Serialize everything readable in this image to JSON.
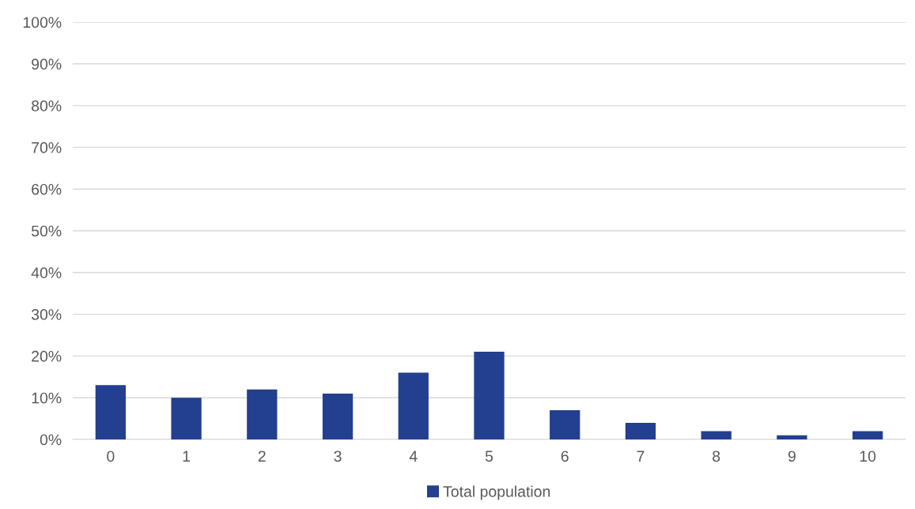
{
  "chart_data": {
    "type": "bar",
    "categories": [
      "0",
      "1",
      "2",
      "3",
      "4",
      "5",
      "6",
      "7",
      "8",
      "9",
      "10"
    ],
    "series": [
      {
        "name": "Total population",
        "color": "#233f8f",
        "values": [
          13,
          10,
          12,
          11,
          16,
          21,
          7,
          4,
          2,
          1,
          2
        ]
      }
    ],
    "ylim": [
      0,
      100
    ],
    "yticks": [
      {
        "value": 0,
        "label": "0%"
      },
      {
        "value": 10,
        "label": "10%"
      },
      {
        "value": 20,
        "label": "20%"
      },
      {
        "value": 30,
        "label": "30%"
      },
      {
        "value": 40,
        "label": "40%"
      },
      {
        "value": 50,
        "label": "50%"
      },
      {
        "value": 60,
        "label": "60%"
      },
      {
        "value": 70,
        "label": "70%"
      },
      {
        "value": 80,
        "label": "80%"
      },
      {
        "value": 90,
        "label": "90%"
      },
      {
        "value": 100,
        "label": "100%"
      }
    ],
    "grid": "y",
    "legend": "bottom"
  }
}
